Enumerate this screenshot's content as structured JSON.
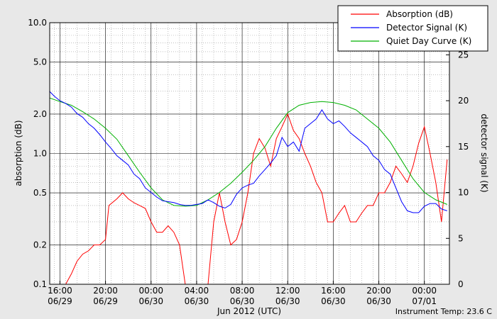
{
  "chart_data": {
    "type": "line",
    "xlabel": "Jun 2012 (UTC)",
    "ylabel_left": "absorption (dB)",
    "ylabel_right": "detector signal (K)",
    "instrument_temp": "Instrument Temp: 23.6 C",
    "x_range_hours": [
      -0.9,
      34.2
    ],
    "y_left": {
      "scale": "log",
      "range": [
        0.1,
        10.0
      ],
      "ticks": [
        {
          "v": 0.1,
          "label": "0.1"
        },
        {
          "v": 0.2,
          "label": "0.2"
        },
        {
          "v": 0.5,
          "label": "0.5"
        },
        {
          "v": 1,
          "label": "1.0"
        },
        {
          "v": 2,
          "label": "2.0"
        },
        {
          "v": 5,
          "label": "5.0"
        },
        {
          "v": 10,
          "label": "10.0"
        }
      ]
    },
    "y_right": {
      "scale": "linear",
      "range": [
        0,
        28.5
      ],
      "ticks": [
        {
          "v": 0,
          "label": "0"
        },
        {
          "v": 5,
          "label": "5"
        },
        {
          "v": 10,
          "label": "10"
        },
        {
          "v": 15,
          "label": "15"
        },
        {
          "v": 20,
          "label": "20"
        },
        {
          "v": 25,
          "label": "25"
        }
      ]
    },
    "x_ticks": [
      {
        "h": 0,
        "time": "16:00",
        "date": "06/29"
      },
      {
        "h": 4,
        "time": "20:00",
        "date": "06/29"
      },
      {
        "h": 8,
        "time": "00:00",
        "date": "06/30"
      },
      {
        "h": 12,
        "time": "04:00",
        "date": "06/30"
      },
      {
        "h": 16,
        "time": "08:00",
        "date": "06/30"
      },
      {
        "h": 20,
        "time": "12:00",
        "date": "06/30"
      },
      {
        "h": 24,
        "time": "16:00",
        "date": "06/30"
      },
      {
        "h": 28,
        "time": "20:00",
        "date": "06/30"
      },
      {
        "h": 32,
        "time": "00:00",
        "date": "07/01"
      }
    ],
    "legend_position": "top-right",
    "series": [
      {
        "name": "Absorption (dB)",
        "axis": "left",
        "color": "#ff0000",
        "x": [
          -0.9,
          -0.5,
          0,
          0.5,
          1,
          1.5,
          2,
          2.5,
          3,
          3.5,
          4,
          4.3,
          5,
          5.5,
          6,
          6.5,
          7,
          7.5,
          8,
          8.5,
          9,
          9.5,
          10,
          10.5,
          11,
          12,
          13,
          13.5,
          14,
          14.5,
          15,
          15.5,
          16,
          16.5,
          17,
          17.5,
          18,
          18.5,
          19,
          19.5,
          20,
          20.5,
          21,
          21.5,
          22,
          22.5,
          23,
          23.5,
          24,
          24.5,
          25,
          25.5,
          26,
          26.5,
          27,
          27.5,
          28,
          28.5,
          29,
          29.5,
          30,
          30.5,
          31,
          31.5,
          32,
          32.5,
          33,
          33.5,
          34
        ],
        "y": [
          0.1,
          0.1,
          0.1,
          0.1,
          0.12,
          0.15,
          0.17,
          0.18,
          0.2,
          0.2,
          0.22,
          0.4,
          0.45,
          0.5,
          0.45,
          0.42,
          0.4,
          0.38,
          0.3,
          0.25,
          0.25,
          0.28,
          0.25,
          0.2,
          0.1,
          0.1,
          0.1,
          0.3,
          0.5,
          0.3,
          0.2,
          0.22,
          0.3,
          0.5,
          1.0,
          1.3,
          1.1,
          0.8,
          1.3,
          1.6,
          2.0,
          1.5,
          1.3,
          1.0,
          0.8,
          0.6,
          0.5,
          0.3,
          0.3,
          0.35,
          0.4,
          0.3,
          0.3,
          0.35,
          0.4,
          0.4,
          0.5,
          0.5,
          0.6,
          0.8,
          0.7,
          0.6,
          0.8,
          1.2,
          1.6,
          1.0,
          0.6,
          0.3,
          0.9
        ]
      },
      {
        "name": "Detector Signal (K)",
        "axis": "right",
        "color": "#0000ff",
        "x": [
          -0.9,
          -0.5,
          0,
          0.5,
          1,
          1.5,
          2,
          2.5,
          3,
          3.5,
          4,
          4.5,
          5,
          5.5,
          6,
          6.5,
          7,
          7.5,
          8,
          8.5,
          9,
          9.5,
          10,
          10.5,
          11,
          11.5,
          12,
          12.5,
          13,
          13.5,
          14,
          14.5,
          15,
          15.5,
          16,
          16.5,
          17,
          17.5,
          18,
          18.5,
          19,
          19.5,
          20,
          20.5,
          21,
          21.5,
          22,
          22.5,
          23,
          23.5,
          24,
          24.5,
          25,
          25.5,
          26,
          26.5,
          27,
          27.5,
          28,
          28.5,
          29,
          29.5,
          30,
          30.5,
          31,
          31.5,
          32,
          32.5,
          33,
          33.5,
          34
        ],
        "y": [
          21,
          20.5,
          20,
          19.7,
          19.3,
          18.6,
          18.2,
          17.5,
          17,
          16.3,
          15.5,
          14.8,
          14,
          13.5,
          13,
          12,
          11.5,
          10.5,
          10,
          9.5,
          9.1,
          9,
          8.9,
          8.7,
          8.6,
          8.6,
          8.7,
          8.8,
          9.2,
          8.9,
          8.5,
          8.3,
          8.7,
          9.8,
          10.5,
          10.8,
          11,
          11.8,
          12.5,
          13.2,
          14,
          16,
          15,
          15.5,
          14.5,
          17,
          17.5,
          18,
          19,
          18,
          17.5,
          17.8,
          17.2,
          16.5,
          16,
          15.5,
          15,
          14,
          13.5,
          12.5,
          12,
          10.5,
          9,
          8,
          7.8,
          7.8,
          8.5,
          8.8,
          8.8,
          8.2,
          8
        ]
      },
      {
        "name": "Quiet Day Curve (K)",
        "axis": "right",
        "color": "#00b000",
        "x": [
          -0.9,
          0,
          1,
          2,
          3,
          4,
          5,
          6,
          7,
          8,
          9,
          10,
          11,
          12,
          13,
          14,
          15,
          16,
          17,
          18,
          19,
          20,
          21,
          22,
          23,
          24,
          25,
          26,
          27,
          28,
          29,
          30,
          31,
          32,
          33,
          34
        ],
        "y": [
          20.3,
          19.9,
          19.5,
          18.8,
          18,
          17,
          15.8,
          14,
          12.2,
          10.5,
          9.2,
          8.6,
          8.5,
          8.6,
          9.2,
          10,
          11,
          12.2,
          13.5,
          15,
          17,
          18.7,
          19.5,
          19.8,
          19.9,
          19.8,
          19.5,
          19,
          18,
          17,
          15.5,
          13.5,
          11.5,
          10,
          9.2,
          8.7
        ]
      }
    ]
  }
}
